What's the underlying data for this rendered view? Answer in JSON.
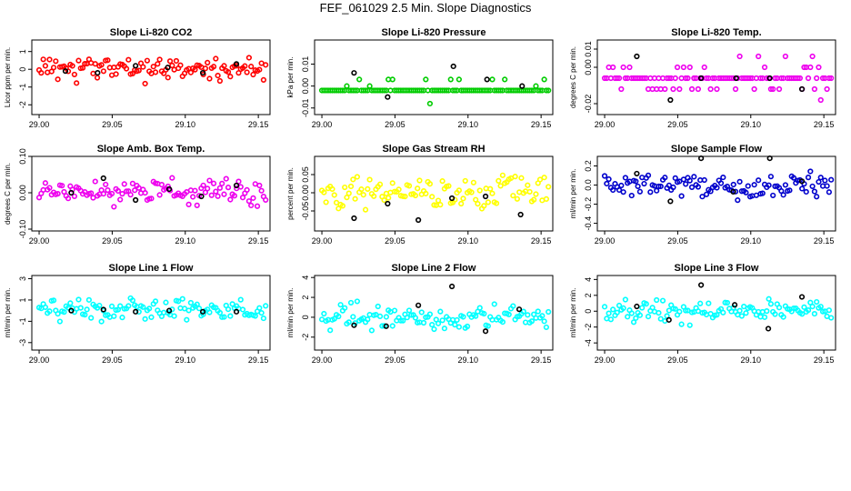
{
  "figure_title": "FEF_061029  2.5 Min. Slope Diagnostics",
  "chart_data": [
    {
      "type": "scatter",
      "title": "Slope Li-820 CO2",
      "ylabel": "Licor ppm per min.",
      "color": "#ff0000",
      "xlim": [
        28.995,
        29.158
      ],
      "ylim": [
        -2.55,
        1.65
      ],
      "xticks": [
        29.0,
        29.05,
        29.1,
        29.15
      ],
      "xticklabels": [
        "29.00",
        "29.05",
        "29.10",
        "29.15"
      ],
      "yticks": [
        -2,
        -1,
        0,
        1
      ],
      "yticklabels": [
        "-2",
        "-1",
        "0",
        "1"
      ],
      "noise_amp": 0.95,
      "seed": 1,
      "pattern": "noise",
      "black_x": [
        29.018,
        29.04,
        29.066,
        29.088,
        29.112,
        29.135
      ],
      "black_y": [
        -0.1,
        -0.2,
        0.2,
        0.1,
        -0.2,
        0.3
      ]
    },
    {
      "type": "scatter",
      "title": "Slope Li-820 Pressure",
      "ylabel": "kPa per min.",
      "color": "#00cc00",
      "xlim": [
        28.995,
        29.158
      ],
      "ylim": [
        -0.013,
        0.021
      ],
      "xticks": [
        29.0,
        29.05,
        29.1,
        29.15
      ],
      "xticklabels": [
        "29.00",
        "29.05",
        "29.10",
        "29.15"
      ],
      "yticks": [
        -0.01,
        0,
        0.01
      ],
      "yticklabels": [
        "-0.01",
        "0.00",
        "0.01"
      ],
      "levels": [
        -0.002,
        0,
        0.003
      ],
      "seed": 2,
      "pattern": "levels",
      "step": 0.003,
      "black_x": [
        29.022,
        29.045,
        29.09,
        29.113,
        29.137
      ],
      "black_y": [
        0.006,
        -0.005,
        0.009,
        0.003,
        0
      ]
    },
    {
      "type": "scatter",
      "title": "Slope Li-820 Temp.",
      "ylabel": "degrees C per min.",
      "color": "#ee00ee",
      "xlim": [
        28.995,
        29.158
      ],
      "ylim": [
        -0.026,
        0.015
      ],
      "xticks": [
        29.0,
        29.05,
        29.1,
        29.15
      ],
      "xticklabels": [
        "29.00",
        "29.05",
        "29.10",
        "29.15"
      ],
      "yticks": [
        -0.02,
        0,
        0.01
      ],
      "yticklabels": [
        "-0.02",
        "0.00",
        "0.01"
      ],
      "levels": [
        -0.006,
        -0.012,
        0
      ],
      "seed": 3,
      "pattern": "levels",
      "step": 0.006,
      "black_x": [
        29.022,
        29.045,
        29.066,
        29.09,
        29.113,
        29.135
      ],
      "black_y": [
        0.006,
        -0.018,
        -0.006,
        -0.006,
        -0.006,
        -0.012
      ]
    },
    {
      "type": "scatter",
      "title": "Slope Amb. Box Temp.",
      "ylabel": "degrees C per min.",
      "color": "#ee00ee",
      "xlim": [
        28.995,
        29.158
      ],
      "ylim": [
        -0.105,
        0.1
      ],
      "xticks": [
        29.0,
        29.05,
        29.1,
        29.15
      ],
      "xticklabels": [
        "29.00",
        "29.05",
        "29.10",
        "29.15"
      ],
      "yticks": [
        -0.1,
        0,
        0.1
      ],
      "yticklabels": [
        "-0.10",
        "0.00",
        "0.10"
      ],
      "noise_amp": 0.05,
      "seed": 4,
      "pattern": "noise",
      "black_x": [
        29.022,
        29.044,
        29.066,
        29.089,
        29.111,
        29.135
      ],
      "black_y": [
        0,
        0.04,
        -0.02,
        0.01,
        -0.01,
        0.02
      ]
    },
    {
      "type": "scatter",
      "title": "Slope Gas Stream RH",
      "ylabel": "percent per min.",
      "color": "#ffff00",
      "xlim": [
        28.995,
        29.158
      ],
      "ylim": [
        -0.105,
        0.1
      ],
      "xticks": [
        29.0,
        29.05,
        29.1,
        29.15
      ],
      "xticklabels": [
        "29.00",
        "29.05",
        "29.10",
        "29.15"
      ],
      "yticks": [
        -0.05,
        0,
        0.05
      ],
      "yticklabels": [
        "-0.05",
        "0.00",
        "0.05"
      ],
      "noise_amp": 0.06,
      "seed": 5,
      "pattern": "noise",
      "black_x": [
        29.022,
        29.045,
        29.066,
        29.089,
        29.112,
        29.136
      ],
      "black_y": [
        -0.07,
        -0.03,
        -0.075,
        -0.015,
        -0.01,
        -0.06
      ]
    },
    {
      "type": "scatter",
      "title": "Slope Sample Flow",
      "ylabel": "ml/min per min.",
      "color": "#0000cc",
      "xlim": [
        28.995,
        29.158
      ],
      "ylim": [
        -0.48,
        0.3
      ],
      "xticks": [
        29.0,
        29.05,
        29.1,
        29.15
      ],
      "xticklabels": [
        "29.00",
        "29.05",
        "29.10",
        "29.15"
      ],
      "yticks": [
        -0.4,
        -0.2,
        0,
        0.2
      ],
      "yticklabels": [
        "-0.4",
        "-0.2",
        "0.0",
        "0.2"
      ],
      "noise_amp": 0.2,
      "seed": 6,
      "pattern": "noise",
      "black_x": [
        29.022,
        29.045,
        29.066,
        29.088,
        29.113,
        29.135
      ],
      "black_y": [
        0.12,
        -0.17,
        0.28,
        -0.07,
        0.28,
        0.04
      ]
    },
    {
      "type": "scatter",
      "title": "Slope Line 1 Flow",
      "ylabel": "ml/min per min.",
      "color": "#00ffff",
      "xlim": [
        28.995,
        29.158
      ],
      "ylim": [
        -3.7,
        3.3
      ],
      "xticks": [
        29.0,
        29.05,
        29.1,
        29.15
      ],
      "xticklabels": [
        "29.00",
        "29.05",
        "29.10",
        "29.15"
      ],
      "yticks": [
        -3,
        -1,
        1,
        3
      ],
      "yticklabels": [
        "-3",
        "-1",
        "1",
        "3"
      ],
      "noise_amp": 1.6,
      "seed": 7,
      "pattern": "noise",
      "black_x": [
        29.022,
        29.044,
        29.066,
        29.089,
        29.112,
        29.135
      ],
      "black_y": [
        0,
        0.1,
        -0.1,
        0,
        -0.1,
        -0.1
      ]
    },
    {
      "type": "scatter",
      "title": "Slope Line 2 Flow",
      "ylabel": "ml/min per min.",
      "color": "#00ffff",
      "xlim": [
        28.995,
        29.158
      ],
      "ylim": [
        -3.3,
        4.2
      ],
      "xticks": [
        29.0,
        29.05,
        29.1,
        29.15
      ],
      "xticklabels": [
        "29.00",
        "29.05",
        "29.10",
        "29.15"
      ],
      "yticks": [
        -2,
        0,
        2,
        4
      ],
      "yticklabels": [
        "-2",
        "0",
        "2",
        "4"
      ],
      "noise_amp": 1.9,
      "seed": 8,
      "pattern": "noise",
      "black_x": [
        29.022,
        29.044,
        29.066,
        29.089,
        29.112,
        29.135
      ],
      "black_y": [
        -0.8,
        -0.9,
        1.2,
        3.1,
        -1.4,
        0.8
      ]
    },
    {
      "type": "scatter",
      "title": "Slope Line 3 Flow",
      "ylabel": "ml/min per min.",
      "color": "#00ffff",
      "xlim": [
        28.995,
        29.158
      ],
      "ylim": [
        -4.9,
        4.5
      ],
      "xticks": [
        29.0,
        29.05,
        29.1,
        29.15
      ],
      "xticklabels": [
        "29.00",
        "29.05",
        "29.10",
        "29.15"
      ],
      "yticks": [
        -4,
        -2,
        0,
        2,
        4
      ],
      "yticklabels": [
        "-4",
        "-2",
        "0",
        "2",
        "4"
      ],
      "noise_amp": 2.2,
      "seed": 9,
      "pattern": "noise",
      "black_x": [
        29.022,
        29.044,
        29.066,
        29.089,
        29.112,
        29.135
      ],
      "black_y": [
        0.6,
        -1.1,
        3.3,
        0.8,
        -2.2,
        1.8
      ]
    }
  ]
}
